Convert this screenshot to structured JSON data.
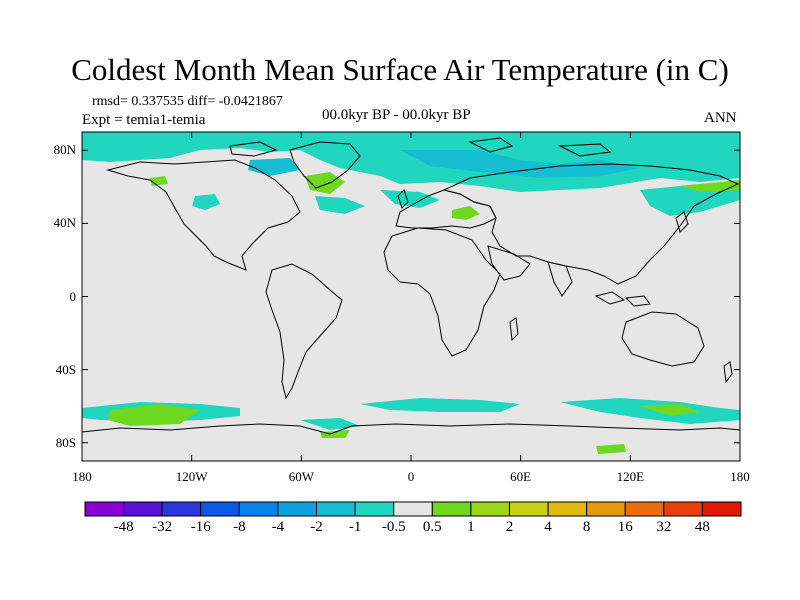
{
  "title": "Coldest Month Mean Surface Air Temperature (in C)",
  "stats": {
    "rmsd_text": "rmsd= 0.337535 diff= -0.0421867"
  },
  "experiment": "Expt = temia1-temia",
  "period": "00.0kyr BP - 00.0kyr BP",
  "season": "ANN",
  "map": {
    "projection": "cylindrical equidistant",
    "lon_range": [
      -180,
      180
    ],
    "lat_range": [
      -90,
      90
    ],
    "x_ticks": [
      {
        "lon": -180,
        "label": "180"
      },
      {
        "lon": -120,
        "label": "120W"
      },
      {
        "lon": -60,
        "label": "60W"
      },
      {
        "lon": 0,
        "label": "0"
      },
      {
        "lon": 60,
        "label": "60E"
      },
      {
        "lon": 120,
        "label": "120E"
      },
      {
        "lon": 180,
        "label": "180"
      }
    ],
    "y_ticks": [
      {
        "lat": 80,
        "label": "80N"
      },
      {
        "lat": 40,
        "label": "40N"
      },
      {
        "lat": 0,
        "label": "0"
      },
      {
        "lat": -40,
        "label": "40S"
      },
      {
        "lat": -80,
        "label": "80S"
      }
    ],
    "background_color": "#e6e6e6"
  },
  "colorbar": {
    "labels": [
      "-48",
      "-32",
      "-16",
      "-8",
      "-4",
      "-2",
      "-1",
      "-0.5",
      "0.5",
      "1",
      "2",
      "4",
      "8",
      "16",
      "32",
      "48"
    ],
    "colors": [
      "#8c00d4",
      "#5a10d8",
      "#2838dc",
      "#0a5ae6",
      "#0a82e6",
      "#10a0e0",
      "#16bed2",
      "#20d6be",
      "#e6e6e6",
      "#6ed81e",
      "#9cd61a",
      "#c8d016",
      "#e0b80e",
      "#e89810",
      "#ea6e10",
      "#e8400c",
      "#e01808"
    ]
  }
}
